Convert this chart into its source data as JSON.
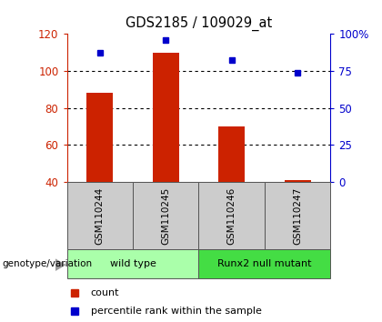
{
  "title": "GDS2185 / 109029_at",
  "samples": [
    "GSM110244",
    "GSM110245",
    "GSM110246",
    "GSM110247"
  ],
  "count_values": [
    88,
    110,
    70,
    41
  ],
  "percentile_values": [
    87,
    96,
    82,
    74
  ],
  "ylim_left": [
    40,
    120
  ],
  "ylim_right": [
    0,
    100
  ],
  "yticks_left": [
    40,
    60,
    80,
    100,
    120
  ],
  "yticks_right": [
    0,
    25,
    50,
    75,
    100
  ],
  "bar_color": "#cc2200",
  "dot_color": "#0000cc",
  "groups": [
    {
      "label": "wild type",
      "indices": [
        0,
        1
      ],
      "bg_color": "#aaffaa"
    },
    {
      "label": "Runx2 null mutant",
      "indices": [
        2,
        3
      ],
      "bg_color": "#44dd44"
    }
  ],
  "group_label_prefix": "genotype/variation",
  "legend_count_label": "count",
  "legend_pct_label": "percentile rank within the sample",
  "tick_color_left": "#cc2200",
  "tick_color_right": "#0000cc",
  "sample_bg_color": "#cccccc",
  "bar_baseline": 40,
  "bar_width": 0.4
}
